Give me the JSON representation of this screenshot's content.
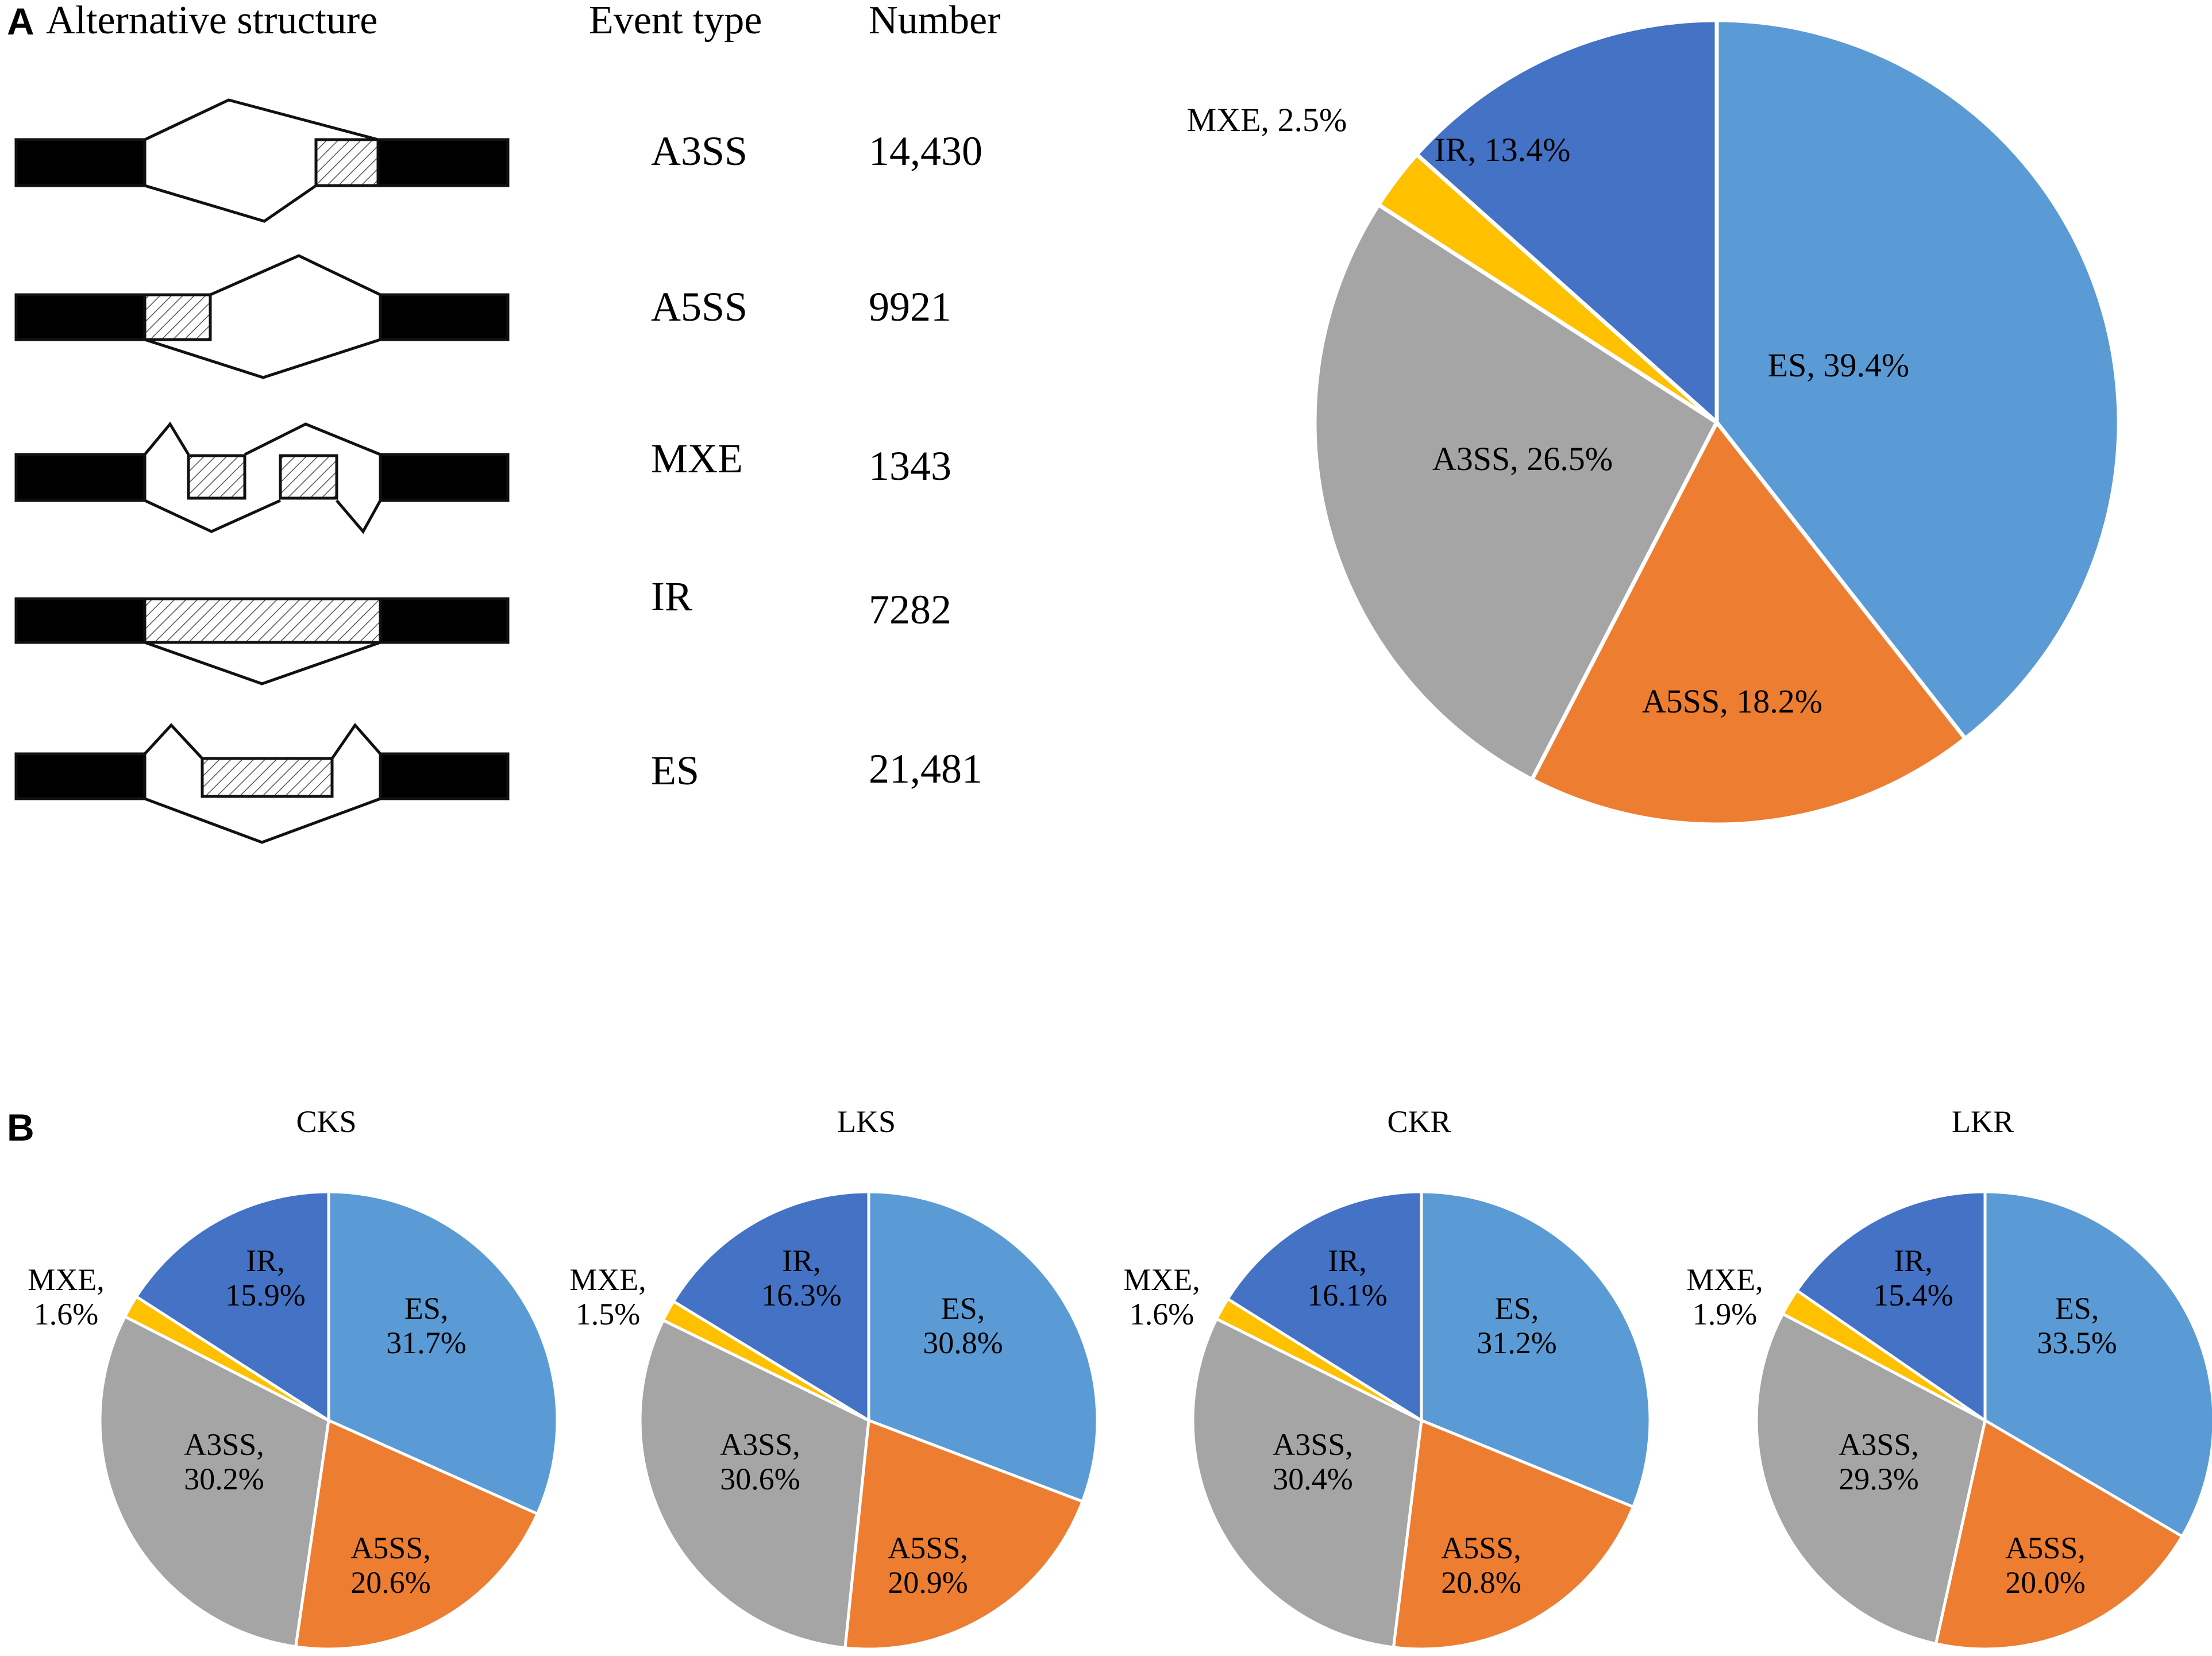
{
  "panel_a": {
    "letter": "A",
    "headers": {
      "structure": "Alternative structure",
      "event_type": "Event type",
      "number": "Number"
    },
    "rows": [
      {
        "event": "A3SS",
        "number": "14,430"
      },
      {
        "event": "A5SS",
        "number": "9921"
      },
      {
        "event": "MXE",
        "number": "1343"
      },
      {
        "event": "IR",
        "number": "7282"
      },
      {
        "event": "ES",
        "number": "21,481"
      }
    ]
  },
  "panel_b": {
    "letter": "B"
  },
  "colors": {
    "ES": "#5b9bd5",
    "A5SS": "#ed7d31",
    "A3SS": "#a5a5a5",
    "MXE": "#ffc000",
    "IR": "#4472c4"
  },
  "chart_data": [
    {
      "type": "pie",
      "title": "",
      "categories": [
        "ES",
        "A5SS",
        "A3SS",
        "MXE",
        "IR"
      ],
      "values": [
        39.4,
        18.2,
        26.5,
        2.5,
        13.4
      ],
      "labels": [
        "ES, 39.4%",
        "A5SS, 18.2%",
        "A3SS, 26.5%",
        "MXE, 2.5%",
        "IR, 13.4%"
      ]
    },
    {
      "type": "pie",
      "title": "CKS",
      "categories": [
        "ES",
        "A5SS",
        "A3SS",
        "MXE",
        "IR"
      ],
      "values": [
        31.7,
        20.6,
        30.2,
        1.6,
        15.9
      ],
      "labels": [
        [
          "ES,",
          "31.7%"
        ],
        [
          "A5SS,",
          "20.6%"
        ],
        [
          "A3SS,",
          "30.2%"
        ],
        [
          "MXE,",
          "1.6%"
        ],
        [
          "IR,",
          "15.9%"
        ]
      ]
    },
    {
      "type": "pie",
      "title": "LKS",
      "categories": [
        "ES",
        "A5SS",
        "A3SS",
        "MXE",
        "IR"
      ],
      "values": [
        30.8,
        20.9,
        30.6,
        1.5,
        16.3
      ],
      "labels": [
        [
          "ES,",
          "30.8%"
        ],
        [
          "A5SS,",
          "20.9%"
        ],
        [
          "A3SS,",
          "30.6%"
        ],
        [
          "MXE,",
          "1.5%"
        ],
        [
          "IR,",
          "16.3%"
        ]
      ]
    },
    {
      "type": "pie",
      "title": "CKR",
      "categories": [
        "ES",
        "A5SS",
        "A3SS",
        "MXE",
        "IR"
      ],
      "values": [
        31.2,
        20.8,
        30.4,
        1.6,
        16.1
      ],
      "labels": [
        [
          "ES,",
          "31.2%"
        ],
        [
          "A5SS,",
          "20.8%"
        ],
        [
          "A3SS,",
          "30.4%"
        ],
        [
          "MXE,",
          "1.6%"
        ],
        [
          "IR,",
          "16.1%"
        ]
      ]
    },
    {
      "type": "pie",
      "title": "LKR",
      "categories": [
        "ES",
        "A5SS",
        "A3SS",
        "MXE",
        "IR"
      ],
      "values": [
        33.5,
        20.0,
        29.3,
        1.9,
        15.4
      ],
      "labels": [
        [
          "ES,",
          "33.5%"
        ],
        [
          "A5SS,",
          "20.0%"
        ],
        [
          "A3SS,",
          "29.3%"
        ],
        [
          "MXE,",
          "1.9%"
        ],
        [
          "IR,",
          "15.4%"
        ]
      ]
    }
  ]
}
